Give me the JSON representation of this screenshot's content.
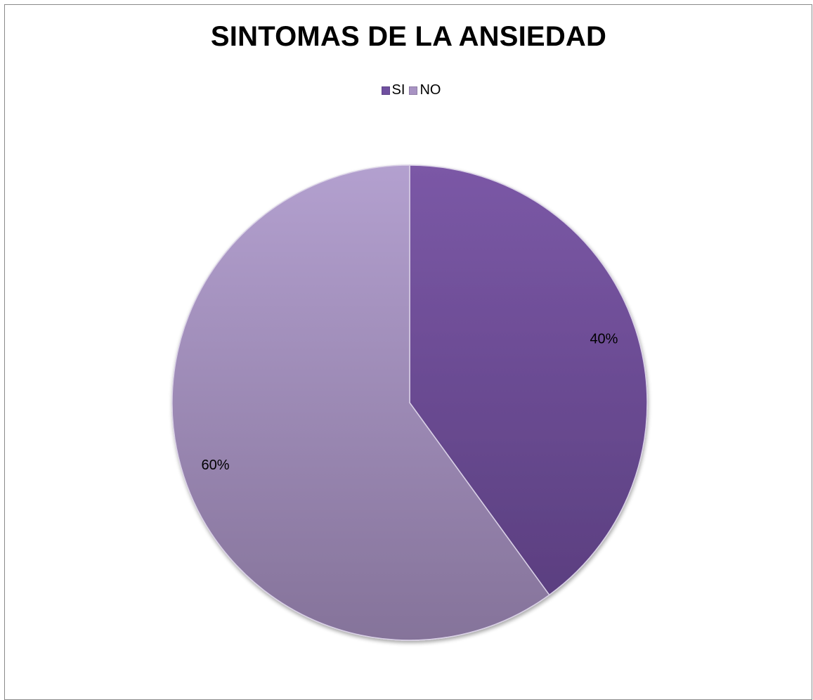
{
  "chart_data": {
    "type": "pie",
    "title": "SINTOMAS DE LA ANSIEDAD",
    "legend_position": "top",
    "categories": [
      "SI",
      "NO"
    ],
    "values": [
      40,
      60
    ],
    "data_labels": [
      "40%",
      "60%"
    ],
    "colors": [
      "#6f4e9a",
      "#a690c0"
    ]
  }
}
